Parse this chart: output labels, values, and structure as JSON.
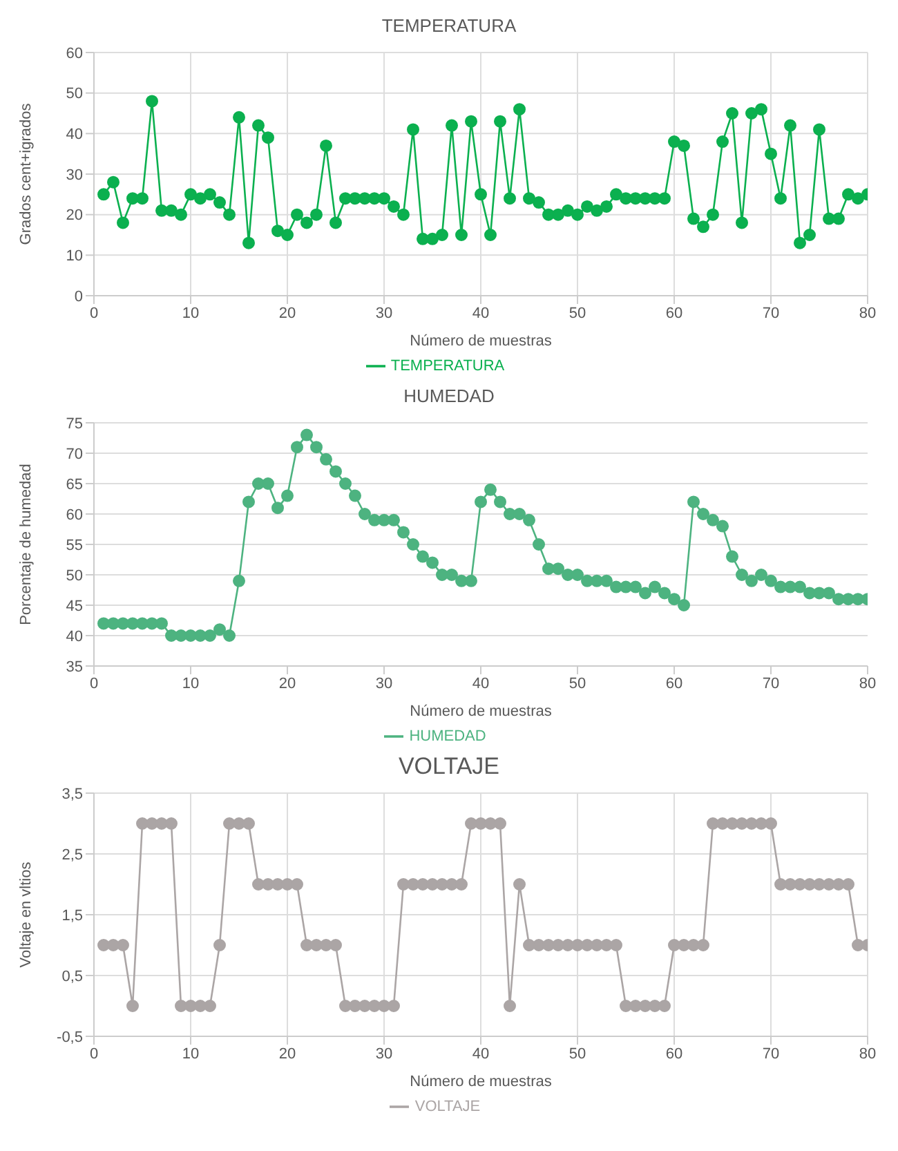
{
  "chart_data": [
    {
      "type": "line",
      "title": "TEMPERATURA",
      "xlabel": "Número de muestras",
      "ylabel": "Grados cent+igrados",
      "x": [
        1,
        2,
        3,
        4,
        5,
        6,
        7,
        8,
        9,
        10,
        11,
        12,
        13,
        14,
        15,
        16,
        17,
        18,
        19,
        20,
        21,
        22,
        23,
        24,
        25,
        26,
        27,
        28,
        29,
        30,
        31,
        32,
        33,
        34,
        35,
        36,
        37,
        38,
        39,
        40,
        41,
        42,
        43,
        44,
        45,
        46,
        47,
        48,
        49,
        50,
        51,
        52,
        53,
        54,
        55,
        56,
        57,
        58,
        59,
        60,
        61,
        62,
        63,
        64,
        65,
        66,
        67,
        68,
        69,
        70,
        71,
        72,
        73,
        74,
        75,
        76,
        77,
        78,
        79,
        80
      ],
      "series": [
        {
          "name": "TEMPERATURA",
          "color": "#0bb04f",
          "values": [
            25,
            28,
            18,
            24,
            24,
            48,
            21,
            21,
            20,
            25,
            24,
            25,
            23,
            20,
            44,
            13,
            42,
            39,
            16,
            15,
            20,
            18,
            20,
            37,
            18,
            24,
            24,
            24,
            24,
            24,
            22,
            20,
            41,
            14,
            14,
            15,
            42,
            15,
            43,
            25,
            15,
            43,
            24,
            46,
            24,
            23,
            20,
            20,
            21,
            20,
            22,
            21,
            22,
            25,
            24,
            24,
            24,
            24,
            24,
            38,
            37,
            19,
            17,
            20,
            38,
            45,
            18,
            45,
            46,
            35,
            24,
            42,
            13,
            15,
            41,
            19,
            19,
            25,
            24,
            25
          ]
        }
      ],
      "xlim": [
        0,
        80
      ],
      "xticks": [
        0,
        10,
        20,
        30,
        40,
        50,
        60,
        70,
        80
      ],
      "ylim": [
        0,
        60
      ],
      "yticks": [
        0,
        10,
        20,
        30,
        40,
        50,
        60
      ],
      "grid": true,
      "legend": "bottom",
      "marker": "circle"
    },
    {
      "type": "line",
      "title": "HUMEDAD",
      "xlabel": "Número de muestras",
      "ylabel": "Porcentaje de humedad",
      "x": [
        1,
        2,
        3,
        4,
        5,
        6,
        7,
        8,
        9,
        10,
        11,
        12,
        13,
        14,
        15,
        16,
        17,
        18,
        19,
        20,
        21,
        22,
        23,
        24,
        25,
        26,
        27,
        28,
        29,
        30,
        31,
        32,
        33,
        34,
        35,
        36,
        37,
        38,
        39,
        40,
        41,
        42,
        43,
        44,
        45,
        46,
        47,
        48,
        49,
        50,
        51,
        52,
        53,
        54,
        55,
        56,
        57,
        58,
        59,
        60,
        61,
        62,
        63,
        64,
        65,
        66,
        67,
        68,
        69,
        70,
        71,
        72,
        73,
        74,
        75,
        76,
        77,
        78,
        79,
        80
      ],
      "series": [
        {
          "name": "HUMEDAD",
          "color": "#4db380",
          "values": [
            42,
            42,
            42,
            42,
            42,
            42,
            42,
            40,
            40,
            40,
            40,
            40,
            41,
            40,
            49,
            62,
            65,
            65,
            61,
            63,
            71,
            73,
            71,
            69,
            67,
            65,
            63,
            60,
            59,
            59,
            59,
            57,
            55,
            53,
            52,
            50,
            50,
            49,
            49,
            62,
            64,
            62,
            60,
            60,
            59,
            55,
            51,
            51,
            50,
            50,
            49,
            49,
            49,
            48,
            48,
            48,
            47,
            48,
            47,
            46,
            45,
            62,
            60,
            59,
            58,
            53,
            50,
            49,
            50,
            49,
            48,
            48,
            48,
            47,
            47,
            47,
            46,
            46,
            46,
            46
          ]
        }
      ],
      "xlim": [
        0,
        80
      ],
      "xticks": [
        0,
        10,
        20,
        30,
        40,
        50,
        60,
        70,
        80
      ],
      "ylim": [
        35,
        75
      ],
      "yticks": [
        35,
        40,
        45,
        50,
        55,
        60,
        65,
        70,
        75
      ],
      "grid": "y",
      "legend": "bottom",
      "marker": "circle"
    },
    {
      "type": "line",
      "title": "VOLTAJE",
      "xlabel": "Número de muestras",
      "ylabel": "Voltaje en vltios",
      "x": [
        1,
        2,
        3,
        4,
        5,
        6,
        7,
        8,
        9,
        10,
        11,
        12,
        13,
        14,
        15,
        16,
        17,
        18,
        19,
        20,
        21,
        22,
        23,
        24,
        25,
        26,
        27,
        28,
        29,
        30,
        31,
        32,
        33,
        34,
        35,
        36,
        37,
        38,
        39,
        40,
        41,
        42,
        43,
        44,
        45,
        46,
        47,
        48,
        49,
        50,
        51,
        52,
        53,
        54,
        55,
        56,
        57,
        58,
        59,
        60,
        61,
        62,
        63,
        64,
        65,
        66,
        67,
        68,
        69,
        70,
        71,
        72,
        73,
        74,
        75,
        76,
        77,
        78,
        79,
        80
      ],
      "series": [
        {
          "name": "VOLTAJE",
          "color": "#aba5a5",
          "values": [
            1,
            1,
            1,
            0,
            3,
            3,
            3,
            3,
            0,
            0,
            0,
            0,
            1,
            3,
            3,
            3,
            2,
            2,
            2,
            2,
            2,
            1,
            1,
            1,
            1,
            0,
            0,
            0,
            0,
            0,
            0,
            2,
            2,
            2,
            2,
            2,
            2,
            2,
            3,
            3,
            3,
            3,
            0,
            2,
            1,
            1,
            1,
            1,
            1,
            1,
            1,
            1,
            1,
            1,
            0,
            0,
            0,
            0,
            0,
            1,
            1,
            1,
            1,
            3,
            3,
            3,
            3,
            3,
            3,
            3,
            2,
            2,
            2,
            2,
            2,
            2,
            2,
            2,
            1,
            1
          ]
        }
      ],
      "xlim": [
        0,
        80
      ],
      "xticks": [
        0,
        10,
        20,
        30,
        40,
        50,
        60,
        70,
        80
      ],
      "ylim": [
        -0.5,
        3.5
      ],
      "yticks": [
        {
          "value": -0.5,
          "label": "-0,5"
        },
        {
          "value": 0.5,
          "label": "0,5"
        },
        {
          "value": 1.5,
          "label": "1,5"
        },
        {
          "value": 2.5,
          "label": "2,5"
        },
        {
          "value": 3.5,
          "label": "3,5"
        }
      ],
      "grid": true,
      "legend": "bottom",
      "marker": "circle"
    }
  ]
}
